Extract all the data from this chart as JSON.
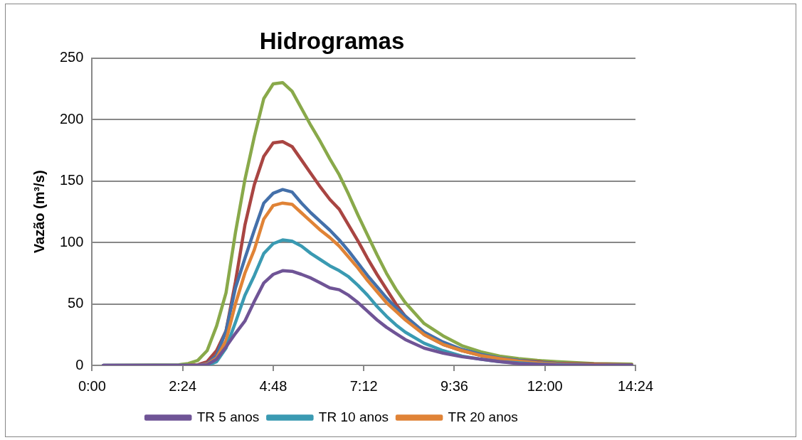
{
  "chart_data": {
    "type": "line",
    "title": "Hidrogramas",
    "ylabel": "Vazão (m³/s)",
    "x": [
      0.3,
      2.3,
      2.55,
      2.8,
      3.05,
      3.3,
      3.55,
      3.8,
      4.05,
      4.3,
      4.55,
      4.8,
      5.05,
      5.3,
      5.55,
      5.8,
      6.05,
      6.3,
      6.55,
      6.8,
      7.05,
      7.3,
      7.55,
      7.8,
      8.05,
      8.3,
      8.8,
      9.3,
      9.8,
      10.3,
      10.8,
      11.3,
      11.8,
      12.3,
      13.3,
      14.3
    ],
    "series": [
      {
        "name": "TR 5 anos",
        "color": "#6f5496",
        "values": [
          0,
          0,
          0,
          0,
          0.5,
          5,
          15,
          26,
          36,
          52,
          67,
          74,
          77,
          76.5,
          74,
          71,
          67,
          63,
          61.5,
          57,
          51,
          44,
          37,
          31,
          26,
          21,
          14,
          10,
          7,
          5,
          3,
          1.5,
          0.8,
          0.3,
          0,
          0
        ]
      },
      {
        "name": "TR 10 anos",
        "color": "#3a9ab2",
        "values": [
          null,
          null,
          null,
          0,
          0,
          3,
          14,
          35,
          57,
          73,
          91,
          99,
          102,
          101,
          97,
          91,
          86,
          81,
          77,
          72,
          65,
          57,
          48,
          40,
          33,
          27,
          18,
          12,
          7.5,
          5,
          3,
          2,
          1,
          0.5,
          0,
          0
        ]
      },
      {
        "name": "TR 20 anos",
        "color": "#e08336",
        "values": [
          null,
          null,
          0,
          0,
          1,
          6,
          20,
          50,
          75,
          94,
          119,
          130,
          132,
          131,
          124,
          117,
          110,
          104,
          97,
          88,
          79,
          69,
          60,
          51,
          44,
          37,
          25,
          17,
          12,
          8,
          5.5,
          3.5,
          2,
          1,
          0.5,
          0
        ]
      },
      {
        "color": "#4470aa",
        "values": [
          0,
          0,
          0,
          0,
          1.5,
          8,
          28,
          63,
          87,
          110,
          132,
          140,
          143,
          141,
          132,
          124,
          117,
          110,
          102,
          93,
          83,
          73,
          64,
          55,
          47,
          40,
          27,
          19,
          13,
          9,
          6,
          4,
          2.5,
          1.5,
          0.5,
          0
        ]
      },
      {
        "color": "#a94542",
        "values": [
          null,
          null,
          0,
          0.5,
          3,
          12,
          28,
          68,
          114,
          147,
          170,
          181,
          182,
          178,
          167,
          156,
          145,
          135,
          127,
          114,
          101,
          87,
          74,
          62,
          50,
          40,
          25,
          17,
          12,
          8,
          5.5,
          4,
          3,
          1.7,
          1,
          0.5
        ]
      },
      {
        "color": "#89a94a",
        "values": [
          0,
          0.5,
          1.5,
          4,
          12,
          32,
          59,
          108,
          151,
          186,
          217,
          229,
          230,
          223,
          209,
          195,
          182,
          168,
          155,
          139,
          122,
          106,
          90,
          75,
          62,
          51,
          34,
          24,
          16,
          11,
          7.5,
          5.5,
          4,
          3,
          1.5,
          1
        ]
      }
    ],
    "xlim": [
      0,
      14.4
    ],
    "xticks": [
      {
        "value": 0,
        "label": "0:00"
      },
      {
        "value": 2.4,
        "label": "2:24"
      },
      {
        "value": 4.8,
        "label": "4:48"
      },
      {
        "value": 7.2,
        "label": "7:12"
      },
      {
        "value": 9.6,
        "label": "9:36"
      },
      {
        "value": 12,
        "label": "12:00"
      },
      {
        "value": 14.4,
        "label": "14:24"
      }
    ],
    "ylim": [
      0,
      250
    ],
    "yticks": [
      0,
      50,
      100,
      150,
      200,
      250
    ],
    "grid": "y",
    "legend": "bottom",
    "marker": "none",
    "line_style": "solid"
  }
}
